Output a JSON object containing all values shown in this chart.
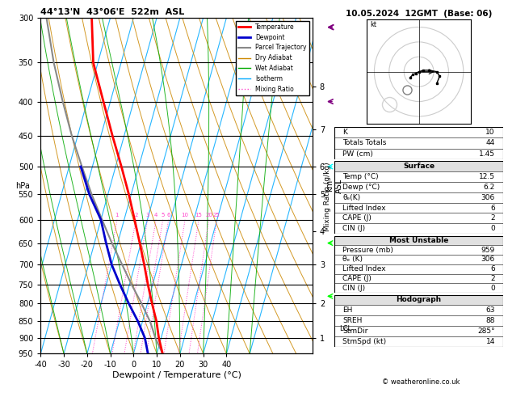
{
  "title_left": "44°13'N  43°06'E  522m  ASL",
  "title_right": "10.05.2024  12GMT  (Base: 06)",
  "xlabel": "Dewpoint / Temperature (°C)",
  "pressure_levels": [
    300,
    350,
    400,
    450,
    500,
    550,
    600,
    650,
    700,
    750,
    800,
    850,
    900,
    950
  ],
  "P_min": 300,
  "P_max": 950,
  "T_min": -40,
  "T_max": 37,
  "skew_amount": 40.0,
  "temp_profile_P": [
    950,
    900,
    850,
    800,
    750,
    700,
    650,
    600,
    550,
    500,
    450,
    400,
    350,
    300
  ],
  "temp_profile_T": [
    12.5,
    9.0,
    6.0,
    2.0,
    -2.0,
    -6.0,
    -10.5,
    -15.5,
    -21.0,
    -27.5,
    -35.0,
    -43.0,
    -52.0,
    -58.0
  ],
  "dewp_profile_P": [
    950,
    900,
    850,
    800,
    750,
    700,
    650,
    600,
    550,
    500
  ],
  "dewp_profile_T": [
    6.2,
    3.0,
    -2.0,
    -8.0,
    -14.0,
    -20.0,
    -25.0,
    -30.0,
    -38.0,
    -45.0
  ],
  "parcel_profile_P": [
    950,
    900,
    870,
    850,
    800,
    750,
    700,
    650,
    600,
    550,
    500,
    450,
    400,
    350,
    300
  ],
  "parcel_profile_T": [
    12.5,
    7.5,
    5.0,
    3.2,
    -2.5,
    -9.0,
    -15.5,
    -22.5,
    -29.5,
    -37.0,
    -44.5,
    -52.5,
    -60.5,
    -69.0,
    -77.5
  ],
  "km_levels": [
    1,
    2,
    3,
    4,
    5,
    6,
    7,
    8
  ],
  "km_pressures": [
    900,
    800,
    700,
    625,
    550,
    500,
    440,
    380
  ],
  "lcl_pressure": 872,
  "temp_color": "#ff0000",
  "dewpoint_color": "#0000cc",
  "parcel_color": "#888888",
  "dry_adiabat_color": "#cc8800",
  "wet_adiabat_color": "#00aa00",
  "isotherm_color": "#00aaff",
  "mixing_ratio_color": "#ff44cc",
  "info": {
    "K": 10,
    "TT": 44,
    "PW": 1.45,
    "s_temp": 12.5,
    "s_dewp": 6.2,
    "s_theta_e": 306,
    "s_LI": 6,
    "s_CAPE": 2,
    "s_CIN": 0,
    "mu_pres": 959,
    "mu_theta_e": 306,
    "mu_LI": 6,
    "mu_CAPE": 2,
    "mu_CIN": 0,
    "EH": 63,
    "SREH": 88,
    "StmDir": "285°",
    "StmSpd": 14
  }
}
